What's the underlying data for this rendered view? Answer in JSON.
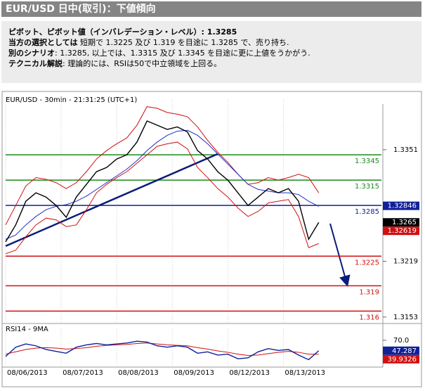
{
  "header": {
    "title": "EUR/USD 日中(取引)：下値傾向"
  },
  "summary": [
    {
      "bold": "ピボット、ピボット値（インバレデーション・レベル）: 1.3285"
    },
    {
      "bold": "当方の選択としては",
      "text": " 短期で 1.3225 及び 1.319 を目途に 1.3285 で、売り持ち."
    },
    {
      "bold": "別のシナリオ",
      "text": ": 1.3285, 以上では、1.3315 及び 1.3345 を目途に更に上値をうかがう."
    },
    {
      "bold": "テクニカル解説",
      "text": ": 理論的には、RSIは50で中立領域を上回る。"
    }
  ],
  "chart_data": [
    {
      "type": "line",
      "title": "EUR/USD - 30min - 21:31:25 (UTC+1)",
      "x": [
        0,
        1,
        2,
        3,
        4,
        5,
        6,
        7,
        8,
        9,
        10,
        11,
        12,
        13,
        14,
        15,
        16,
        17,
        18,
        19,
        20,
        21,
        22,
        23,
        24,
        25,
        26,
        27,
        28,
        29,
        30,
        31
      ],
      "xlim": [
        0,
        37
      ],
      "xticks": [
        {
          "value": 0,
          "label": "08/06/2013"
        },
        {
          "value": 5.5,
          "label": "08/07/2013"
        },
        {
          "value": 11,
          "label": "08/08/2013"
        },
        {
          "value": 16.5,
          "label": "08/09/2013"
        },
        {
          "value": 22,
          "label": "08/12/2013"
        },
        {
          "value": 27.5,
          "label": "08/13/2013"
        }
      ],
      "ylim": [
        1.3147,
        1.3405
      ],
      "yticks": [
        1.3351,
        1.3219,
        1.3153
      ],
      "series": [
        {
          "color": "#d01010",
          "values": [
            1.3262,
            1.3285,
            1.3308,
            1.3318,
            1.3316,
            1.3312,
            1.3305,
            1.3312,
            1.3325,
            1.334,
            1.335,
            1.3358,
            1.3365,
            1.338,
            1.3402,
            1.34,
            1.3395,
            1.3393,
            1.339,
            1.3378,
            1.3362,
            1.3348,
            1.3336,
            1.3322,
            1.331,
            1.3312,
            1.3318,
            1.3315,
            1.3318,
            1.3322,
            1.3318,
            1.33
          ]
        },
        {
          "color": "#d01010",
          "values": [
            1.3228,
            1.3232,
            1.3248,
            1.3262,
            1.327,
            1.3268,
            1.326,
            1.3262,
            1.328,
            1.33,
            1.331,
            1.3318,
            1.3325,
            1.3335,
            1.3345,
            1.3355,
            1.3358,
            1.336,
            1.3352,
            1.333,
            1.3318,
            1.3305,
            1.3295,
            1.3282,
            1.3272,
            1.3278,
            1.3288,
            1.329,
            1.3292,
            1.3272,
            1.3235,
            1.324
          ]
        },
        {
          "color": "#2030c0",
          "values": [
            1.3245,
            1.325,
            1.3262,
            1.3272,
            1.328,
            1.3284,
            1.3286,
            1.329,
            1.3296,
            1.3304,
            1.3312,
            1.332,
            1.3328,
            1.3338,
            1.335,
            1.336,
            1.3368,
            1.3373,
            1.3374,
            1.3368,
            1.3358,
            1.3346,
            1.3334,
            1.3322,
            1.331,
            1.3304,
            1.3302,
            1.33,
            1.33,
            1.3298,
            1.329,
            1.3284
          ]
        },
        {
          "color": "#000000",
          "values": [
            1.3242,
            1.3262,
            1.329,
            1.33,
            1.3295,
            1.3285,
            1.3271,
            1.3295,
            1.331,
            1.3325,
            1.333,
            1.334,
            1.3345,
            1.336,
            1.3385,
            1.338,
            1.3375,
            1.3378,
            1.3372,
            1.335,
            1.334,
            1.3325,
            1.3315,
            1.33,
            1.3285,
            1.3295,
            1.3305,
            1.33,
            1.3305,
            1.329,
            1.3245,
            1.3265
          ]
        }
      ],
      "levels": [
        {
          "value": 1.3345,
          "color": "#1a8a1a"
        },
        {
          "value": 1.3315,
          "color": "#1a8a1a"
        },
        {
          "value": 1.3285,
          "color": "#10209a"
        },
        {
          "value": 1.3225,
          "color": "#d01010"
        },
        {
          "value": 1.319,
          "color": "#d01010"
        },
        {
          "value": 1.316,
          "color": "#d01010"
        }
      ],
      "trendline": {
        "x": [
          0,
          21
        ],
        "values": [
          1.3237,
          1.3346
        ],
        "color": "#0b1b7a"
      },
      "last_prices": [
        {
          "value": 1.32846,
          "color": "#10209a"
        },
        {
          "value": 1.3265,
          "color": "#000000"
        },
        {
          "value": 1.32619,
          "color": "#d01010"
        }
      ]
    },
    {
      "type": "line",
      "title": "RSI14 - 9MA",
      "x": [
        0,
        1,
        2,
        3,
        4,
        5,
        6,
        7,
        8,
        9,
        10,
        11,
        12,
        13,
        14,
        15,
        16,
        17,
        18,
        19,
        20,
        21,
        22,
        23,
        24,
        25,
        26,
        27,
        28,
        29,
        30,
        31
      ],
      "xlim": [
        0,
        37
      ],
      "ylim": [
        15,
        85
      ],
      "yticks": [
        {
          "value": 70,
          "label": "70.0"
        }
      ],
      "series": [
        {
          "color": "#d01010",
          "values": [
            40,
            45,
            50,
            53,
            54,
            53,
            51,
            52,
            54,
            57,
            59,
            60,
            61,
            63,
            64,
            62,
            60,
            59,
            58,
            54,
            51,
            47,
            44,
            40,
            37,
            38,
            41,
            44,
            46,
            44,
            40,
            39.9326
          ]
        },
        {
          "color": "#10209a",
          "values": [
            35,
            55,
            62,
            58,
            50,
            46,
            42,
            55,
            60,
            63,
            60,
            62,
            64,
            68,
            66,
            58,
            55,
            58,
            55,
            42,
            45,
            38,
            40,
            30,
            32,
            45,
            52,
            48,
            50,
            38,
            28,
            47.287
          ]
        }
      ],
      "last_prices": [
        {
          "value": 47.287,
          "color": "#10209a"
        },
        {
          "value": 39.9326,
          "color": "#d01010"
        }
      ]
    }
  ]
}
